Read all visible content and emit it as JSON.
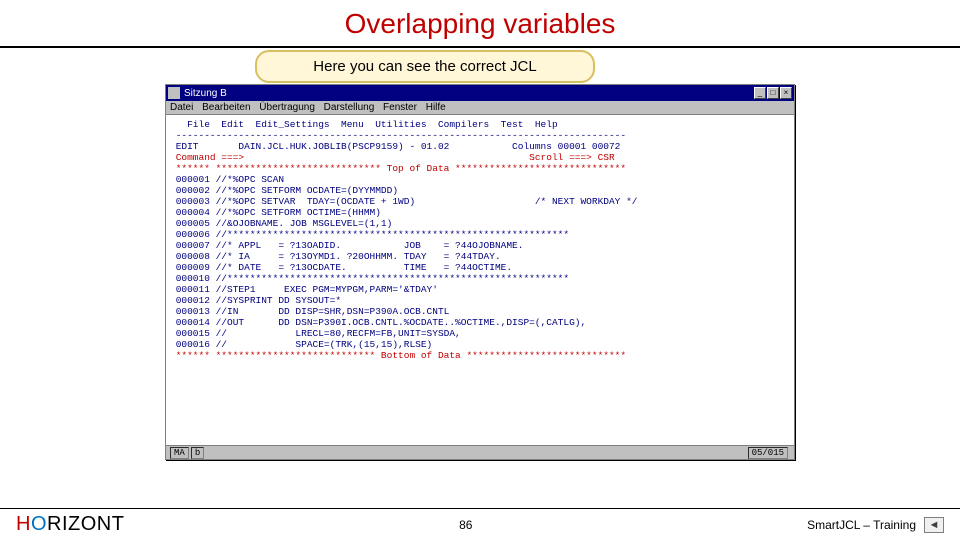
{
  "slide": {
    "title": "Overlapping variables",
    "callout": "Here you can see the correct JCL"
  },
  "window": {
    "title": "Sitzung B",
    "menus": [
      "Datei",
      "Bearbeiten",
      "Übertragung",
      "Darstellung",
      "Fenster",
      "Hilfe"
    ],
    "status_left1": "MA",
    "status_left2": "b",
    "status_right": "05/015"
  },
  "terminal": {
    "menu_line": "   File  Edit  Edit_Settings  Menu  Utilities  Compilers  Test  Help",
    "rule": " -------------------------------------------------------------------------------",
    "edit_line": " EDIT       DAIN.JCL.HUK.JOBLIB(PSCP9159) - 01.02           Columns 00001 00072",
    "cmd_line": " Command ===>                                                  Scroll ===> CSR ",
    "top": " ****** ***************************** Top of Data ******************************",
    "lines": [
      " 000001 //*%OPC SCAN",
      " 000002 //*%OPC SETFORM OCDATE=(DYYMMDD)",
      " 000003 //*%OPC SETVAR  TDAY=(OCDATE + 1WD)                     /* NEXT WORKDAY */",
      " 000004 //*%OPC SETFORM OCTIME=(HHMM)",
      " 000005 //&OJOBNAME. JOB MSGLEVEL=(1,1)",
      " 000006 //************************************************************",
      " 000007 //* APPL   = ?13OADID.           JOB    = ?44OJOBNAME.",
      " 000008 //* IA     = ?13OYMD1. ?20OHHMM. TDAY   = ?44TDAY.",
      " 000009 //* DATE   = ?13OCDATE.          TIME   = ?44OCTIME.",
      " 000010 //************************************************************",
      " 000011 //STEP1     EXEC PGM=MYPGM,PARM='&TDAY'",
      " 000012 //SYSPRINT DD SYSOUT=*",
      " 000013 //IN       DD DISP=SHR,DSN=P390A.OCB.CNTL",
      " 000014 //OUT      DD DSN=P390I.OCB.CNTL.%OCDATE..%OCTIME.,DISP=(,CATLG),",
      " 000015 //            LRECL=80,RECFM=FB,UNIT=SYSDA,",
      " 000016 //            SPACE=(TRK,(15,15),RLSE)"
    ],
    "bottom": " ****** **************************** Bottom of Data ****************************"
  },
  "footer": {
    "brand_h": "H",
    "brand_o": "O",
    "brand_rest": "RIZONT",
    "page": "86",
    "right": "SmartJCL – Training"
  }
}
